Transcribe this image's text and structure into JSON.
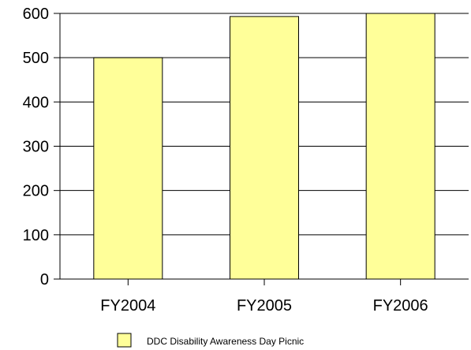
{
  "chart_data": {
    "type": "bar",
    "categories": [
      "FY2004",
      "FY2005",
      "FY2006"
    ],
    "series": [
      {
        "name": "DDC Disability Awareness Day Picnic",
        "values": [
          500,
          593,
          600
        ]
      }
    ],
    "ylim": [
      0,
      600
    ],
    "yticks": [
      0,
      100,
      200,
      300,
      400,
      500,
      600
    ],
    "grid": true,
    "legend_position": "bottom",
    "colors": {
      "bar_fill": "#ffff99",
      "bar_stroke": "#000000",
      "grid": "#000000"
    }
  }
}
